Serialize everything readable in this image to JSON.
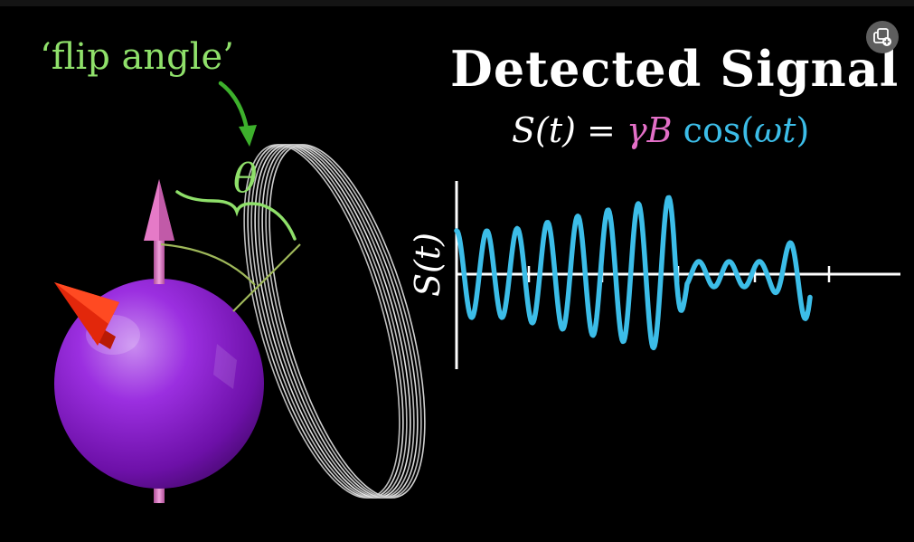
{
  "annotation": {
    "flip_label": "‘flip angle’",
    "angle_symbol": "θ"
  },
  "title": "Detected Signal",
  "formula": {
    "lhs": "S(t)",
    "equals": " = ",
    "gamma_b": "γB",
    "cos_open": " cos(",
    "omega_t": "ωt",
    "close": ")"
  },
  "plot": {
    "ylabel": "S(t)"
  },
  "colors": {
    "annotation_green": "#8fe06a",
    "arrow_green": "#3db02c",
    "gamma_pink": "#e36fc7",
    "signal_blue": "#3cbde8",
    "sphere_purple": "#8e1bd0",
    "vector_pink": "#e57ac7",
    "cone_red": "#e2270b",
    "coil_gray": "#c8c8c8"
  },
  "icons": {
    "corner_button": "layers-add-icon"
  }
}
